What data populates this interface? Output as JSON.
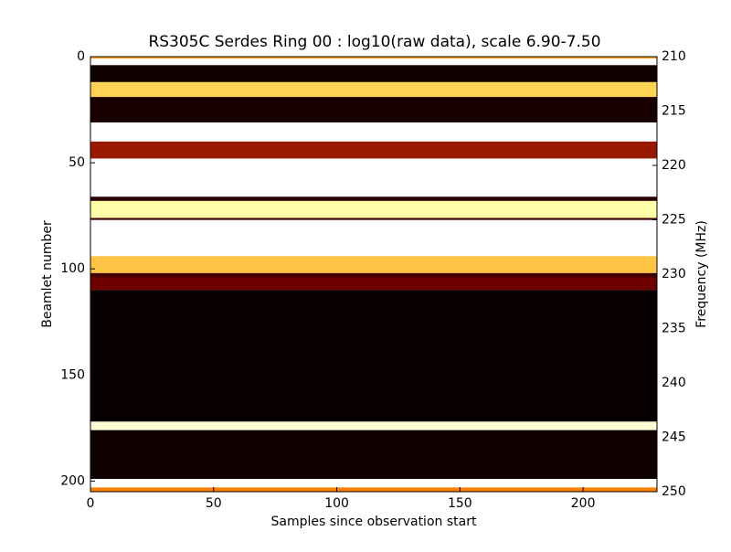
{
  "chart_data": {
    "type": "heatmap",
    "title": "RS305C Serdes Ring 00 : log10(raw data), scale 6.90-7.50",
    "x_label": "Samples since observation start",
    "y_label": "Beamlet number",
    "y2_label": "Frequency (MHz)",
    "colormap": "afmhot",
    "color_range": [
      6.9,
      7.5
    ],
    "row_edges": [
      0,
      1,
      4,
      12,
      19,
      31,
      40,
      48,
      66,
      68,
      76,
      77,
      94,
      102,
      104,
      110,
      172,
      176,
      199,
      203,
      205
    ],
    "values": [
      7.25,
      7.5,
      6.92,
      7.3,
      6.93,
      7.5,
      7.08,
      7.5,
      6.95,
      7.4,
      6.98,
      7.5,
      7.28,
      6.98,
      7.03,
      6.91,
      7.45,
      6.92,
      7.5,
      7.2
    ],
    "xlim": [
      0,
      230
    ],
    "ylim": [
      205,
      0
    ],
    "y2lim": [
      250,
      210
    ],
    "xticks": [
      0,
      50,
      100,
      150,
      200
    ],
    "yticks": [
      0,
      50,
      100,
      150,
      200
    ],
    "y2ticks": [
      210,
      215,
      220,
      225,
      230,
      235,
      240,
      245,
      250
    ]
  }
}
